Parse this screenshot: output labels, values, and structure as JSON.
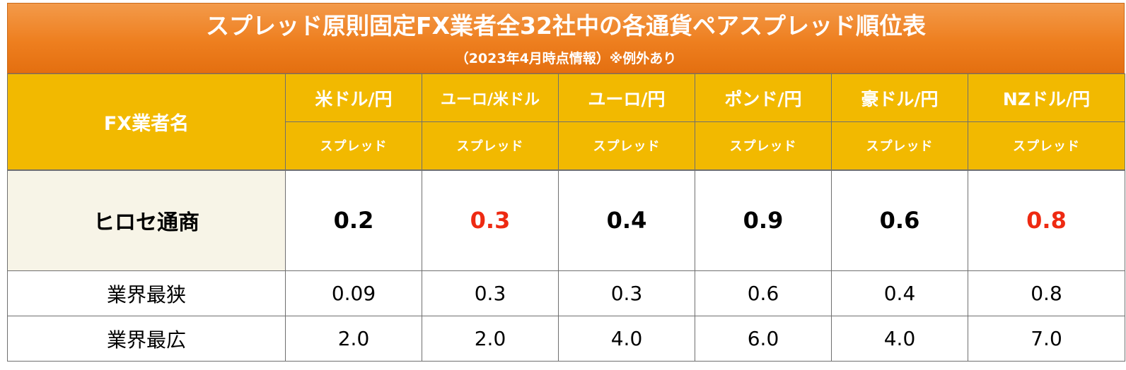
{
  "header": {
    "title": "スプレッド原則固定FX業者全32社中の各通貨ペアスプレッド順位表",
    "subtitle": "（2023年4月時点情報）※例外あり"
  },
  "table": {
    "name_header": "FX業者名",
    "pairs": [
      "米ドル/円",
      "ユーロ/米ドル",
      "ユーロ/円",
      "ポンド/円",
      "豪ドル/円",
      "NZドル/円"
    ],
    "spread_label": "スプレッド",
    "rows": [
      {
        "name": "ヒロセ通商",
        "values": [
          "0.2",
          "0.3",
          "0.4",
          "0.9",
          "0.6",
          "0.8"
        ]
      },
      {
        "name": "業界最狭",
        "values": [
          "0.09",
          "0.3",
          "0.3",
          "0.6",
          "0.4",
          "0.8"
        ]
      },
      {
        "name": "業界最広",
        "values": [
          "2.0",
          "2.0",
          "4.0",
          "6.0",
          "4.0",
          "7.0"
        ]
      }
    ]
  },
  "colors": {
    "header_orange": "#ee7f1f",
    "column_header_gold": "#f2b900",
    "highlight_red": "#ee2a12"
  }
}
